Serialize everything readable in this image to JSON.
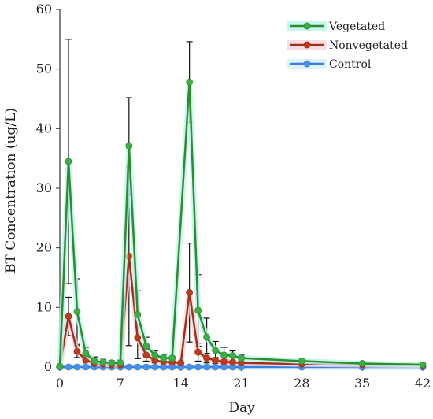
{
  "chart_data": {
    "type": "line",
    "title": "",
    "xlabel": "Day",
    "ylabel": "BT Concentration (ug/L)",
    "xlim": [
      0,
      42
    ],
    "ylim": [
      0,
      60
    ],
    "x_ticks": [
      0,
      7,
      14,
      21,
      28,
      35,
      42
    ],
    "y_ticks": [
      0,
      10,
      20,
      30,
      40,
      50,
      60
    ],
    "grid": false,
    "legend_position": "top-right",
    "series": [
      {
        "name": "Vegetated",
        "color": "#2e8b2e",
        "marker_color": "#3cb043",
        "glow_color": "#b8f5e8",
        "points": [
          {
            "x": 0,
            "y": 0.1
          },
          {
            "x": 1,
            "y": 34.5,
            "err": 20.5
          },
          {
            "x": 2,
            "y": 9.3,
            "err": 5.5
          },
          {
            "x": 3,
            "y": 2.3,
            "err": 1
          },
          {
            "x": 4,
            "y": 1,
            "err": 0.7
          },
          {
            "x": 5,
            "y": 0.8,
            "err": 0.5
          },
          {
            "x": 6,
            "y": 0.7,
            "err": 0.4
          },
          {
            "x": 7,
            "y": 0.7,
            "err": 0.5
          },
          {
            "x": 8,
            "y": 37.1,
            "err": 8.1
          },
          {
            "x": 9,
            "y": 8.8,
            "err": 4
          },
          {
            "x": 10,
            "y": 3.5,
            "err": 1.5
          },
          {
            "x": 11,
            "y": 2,
            "err": 0.7
          },
          {
            "x": 12,
            "y": 1.5,
            "err": 0.5
          },
          {
            "x": 13,
            "y": 1.5,
            "err": 0.3
          },
          {
            "x": 15,
            "y": 47.8,
            "err": 6.8
          },
          {
            "x": 16,
            "y": 9.5,
            "err": 6
          },
          {
            "x": 17,
            "y": 5,
            "err": 3.2
          },
          {
            "x": 18,
            "y": 2.8,
            "err": 1.5
          },
          {
            "x": 19,
            "y": 2,
            "err": 1.3
          },
          {
            "x": 20,
            "y": 1.9,
            "err": 0.8
          },
          {
            "x": 21,
            "y": 1.5,
            "err": 0.5
          },
          {
            "x": 28,
            "y": 1,
            "err": 0.3
          },
          {
            "x": 35,
            "y": 0.6,
            "err": 0.3
          },
          {
            "x": 42,
            "y": 0.4,
            "err": 0.2
          }
        ]
      },
      {
        "name": "Nonvegetated",
        "color": "#a0301a",
        "marker_color": "#c0391b",
        "glow_color": "#f5d6dc",
        "points": [
          {
            "x": 0,
            "y": 0.1
          },
          {
            "x": 1,
            "y": 8.5,
            "err": 3.2
          },
          {
            "x": 2,
            "y": 2.6,
            "err": 1
          },
          {
            "x": 3,
            "y": 1.2,
            "err": 0.5
          },
          {
            "x": 4,
            "y": 0.6,
            "err": 0.3
          },
          {
            "x": 5,
            "y": 0.5,
            "err": 0.2
          },
          {
            "x": 6,
            "y": 0.4,
            "err": 0.2
          },
          {
            "x": 7,
            "y": 0.4,
            "err": 0.2
          },
          {
            "x": 8,
            "y": 18.6,
            "err": 15
          },
          {
            "x": 9,
            "y": 4.9,
            "err": 3.5
          },
          {
            "x": 10,
            "y": 2,
            "err": 1
          },
          {
            "x": 11,
            "y": 1.1,
            "err": 0.4
          },
          {
            "x": 12,
            "y": 0.9,
            "err": 0.3
          },
          {
            "x": 13,
            "y": 0.8,
            "err": 0.2
          },
          {
            "x": 14,
            "y": 0.7,
            "err": 0.2
          },
          {
            "x": 15,
            "y": 12.5,
            "err": 8.3
          },
          {
            "x": 16,
            "y": 2.5,
            "err": 1.5
          },
          {
            "x": 17,
            "y": 1.5,
            "err": 0.8
          },
          {
            "x": 18,
            "y": 1.1,
            "err": 0.5
          },
          {
            "x": 19,
            "y": 0.9,
            "err": 0.4
          },
          {
            "x": 20,
            "y": 0.8,
            "err": 0.3
          },
          {
            "x": 21,
            "y": 0.7,
            "err": 0.3
          },
          {
            "x": 28,
            "y": 0.5,
            "err": 0.2
          },
          {
            "x": 35,
            "y": 0.4,
            "err": 0.2
          },
          {
            "x": 42,
            "y": 0.3,
            "err": 0.1
          }
        ]
      },
      {
        "name": "Control",
        "color": "#3a7fe0",
        "marker_color": "#4a90e8",
        "glow_color": "#d6f0ff",
        "points": [
          {
            "x": 0,
            "y": 0
          },
          {
            "x": 1,
            "y": 0
          },
          {
            "x": 2,
            "y": 0
          },
          {
            "x": 3,
            "y": 0
          },
          {
            "x": 4,
            "y": 0
          },
          {
            "x": 5,
            "y": 0
          },
          {
            "x": 6,
            "y": 0
          },
          {
            "x": 7,
            "y": 0
          },
          {
            "x": 8,
            "y": 0
          },
          {
            "x": 9,
            "y": 0
          },
          {
            "x": 10,
            "y": 0
          },
          {
            "x": 11,
            "y": 0
          },
          {
            "x": 12,
            "y": 0
          },
          {
            "x": 13,
            "y": 0
          },
          {
            "x": 14,
            "y": 0
          },
          {
            "x": 15,
            "y": 0
          },
          {
            "x": 16,
            "y": 0
          },
          {
            "x": 17,
            "y": 0
          },
          {
            "x": 18,
            "y": 0
          },
          {
            "x": 19,
            "y": 0
          },
          {
            "x": 20,
            "y": 0
          },
          {
            "x": 21,
            "y": 0
          },
          {
            "x": 28,
            "y": 0
          },
          {
            "x": 35,
            "y": 0
          },
          {
            "x": 42,
            "y": 0
          }
        ]
      }
    ]
  }
}
